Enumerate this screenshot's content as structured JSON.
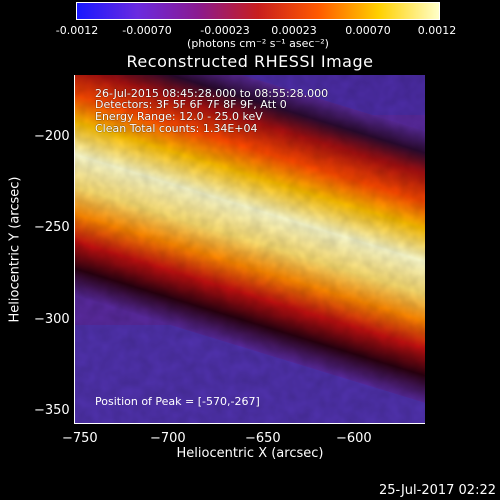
{
  "colorbar": {
    "labels": [
      "-0.0012",
      "-0.00070",
      "-0.00023",
      "0.00023",
      "0.00070",
      "0.0012"
    ],
    "units": "(photons cm⁻² s⁻¹ asec⁻²)",
    "colors": [
      "#1818ff",
      "#6a2ae0",
      "#8a1a90",
      "#c81e1e",
      "#ff5a00",
      "#ffd000",
      "#ffffc8"
    ]
  },
  "title": "Reconstructed RHESSI Image",
  "annotations": {
    "line1": "26-Jul-2015 08:45:28.000 to 08:55:28.000",
    "line2": "Detectors: 3F 5F 6F 7F 8F 9F, Att 0",
    "line3": "Energy Range: 12.0 - 25.0 keV",
    "line4": "Clean     Total counts: 1.34E+04",
    "peak": "Position of Peak = [-570,-267]"
  },
  "axes": {
    "xlabel": "Heliocentric X (arcsec)",
    "ylabel": "Heliocentric Y (arcsec)",
    "xticks": [
      "−750",
      "−700",
      "−650",
      "−600"
    ],
    "yticks": [
      "−200",
      "−250",
      "−300",
      "−350"
    ]
  },
  "timestamp": "25-Jul-2017 02:22"
}
